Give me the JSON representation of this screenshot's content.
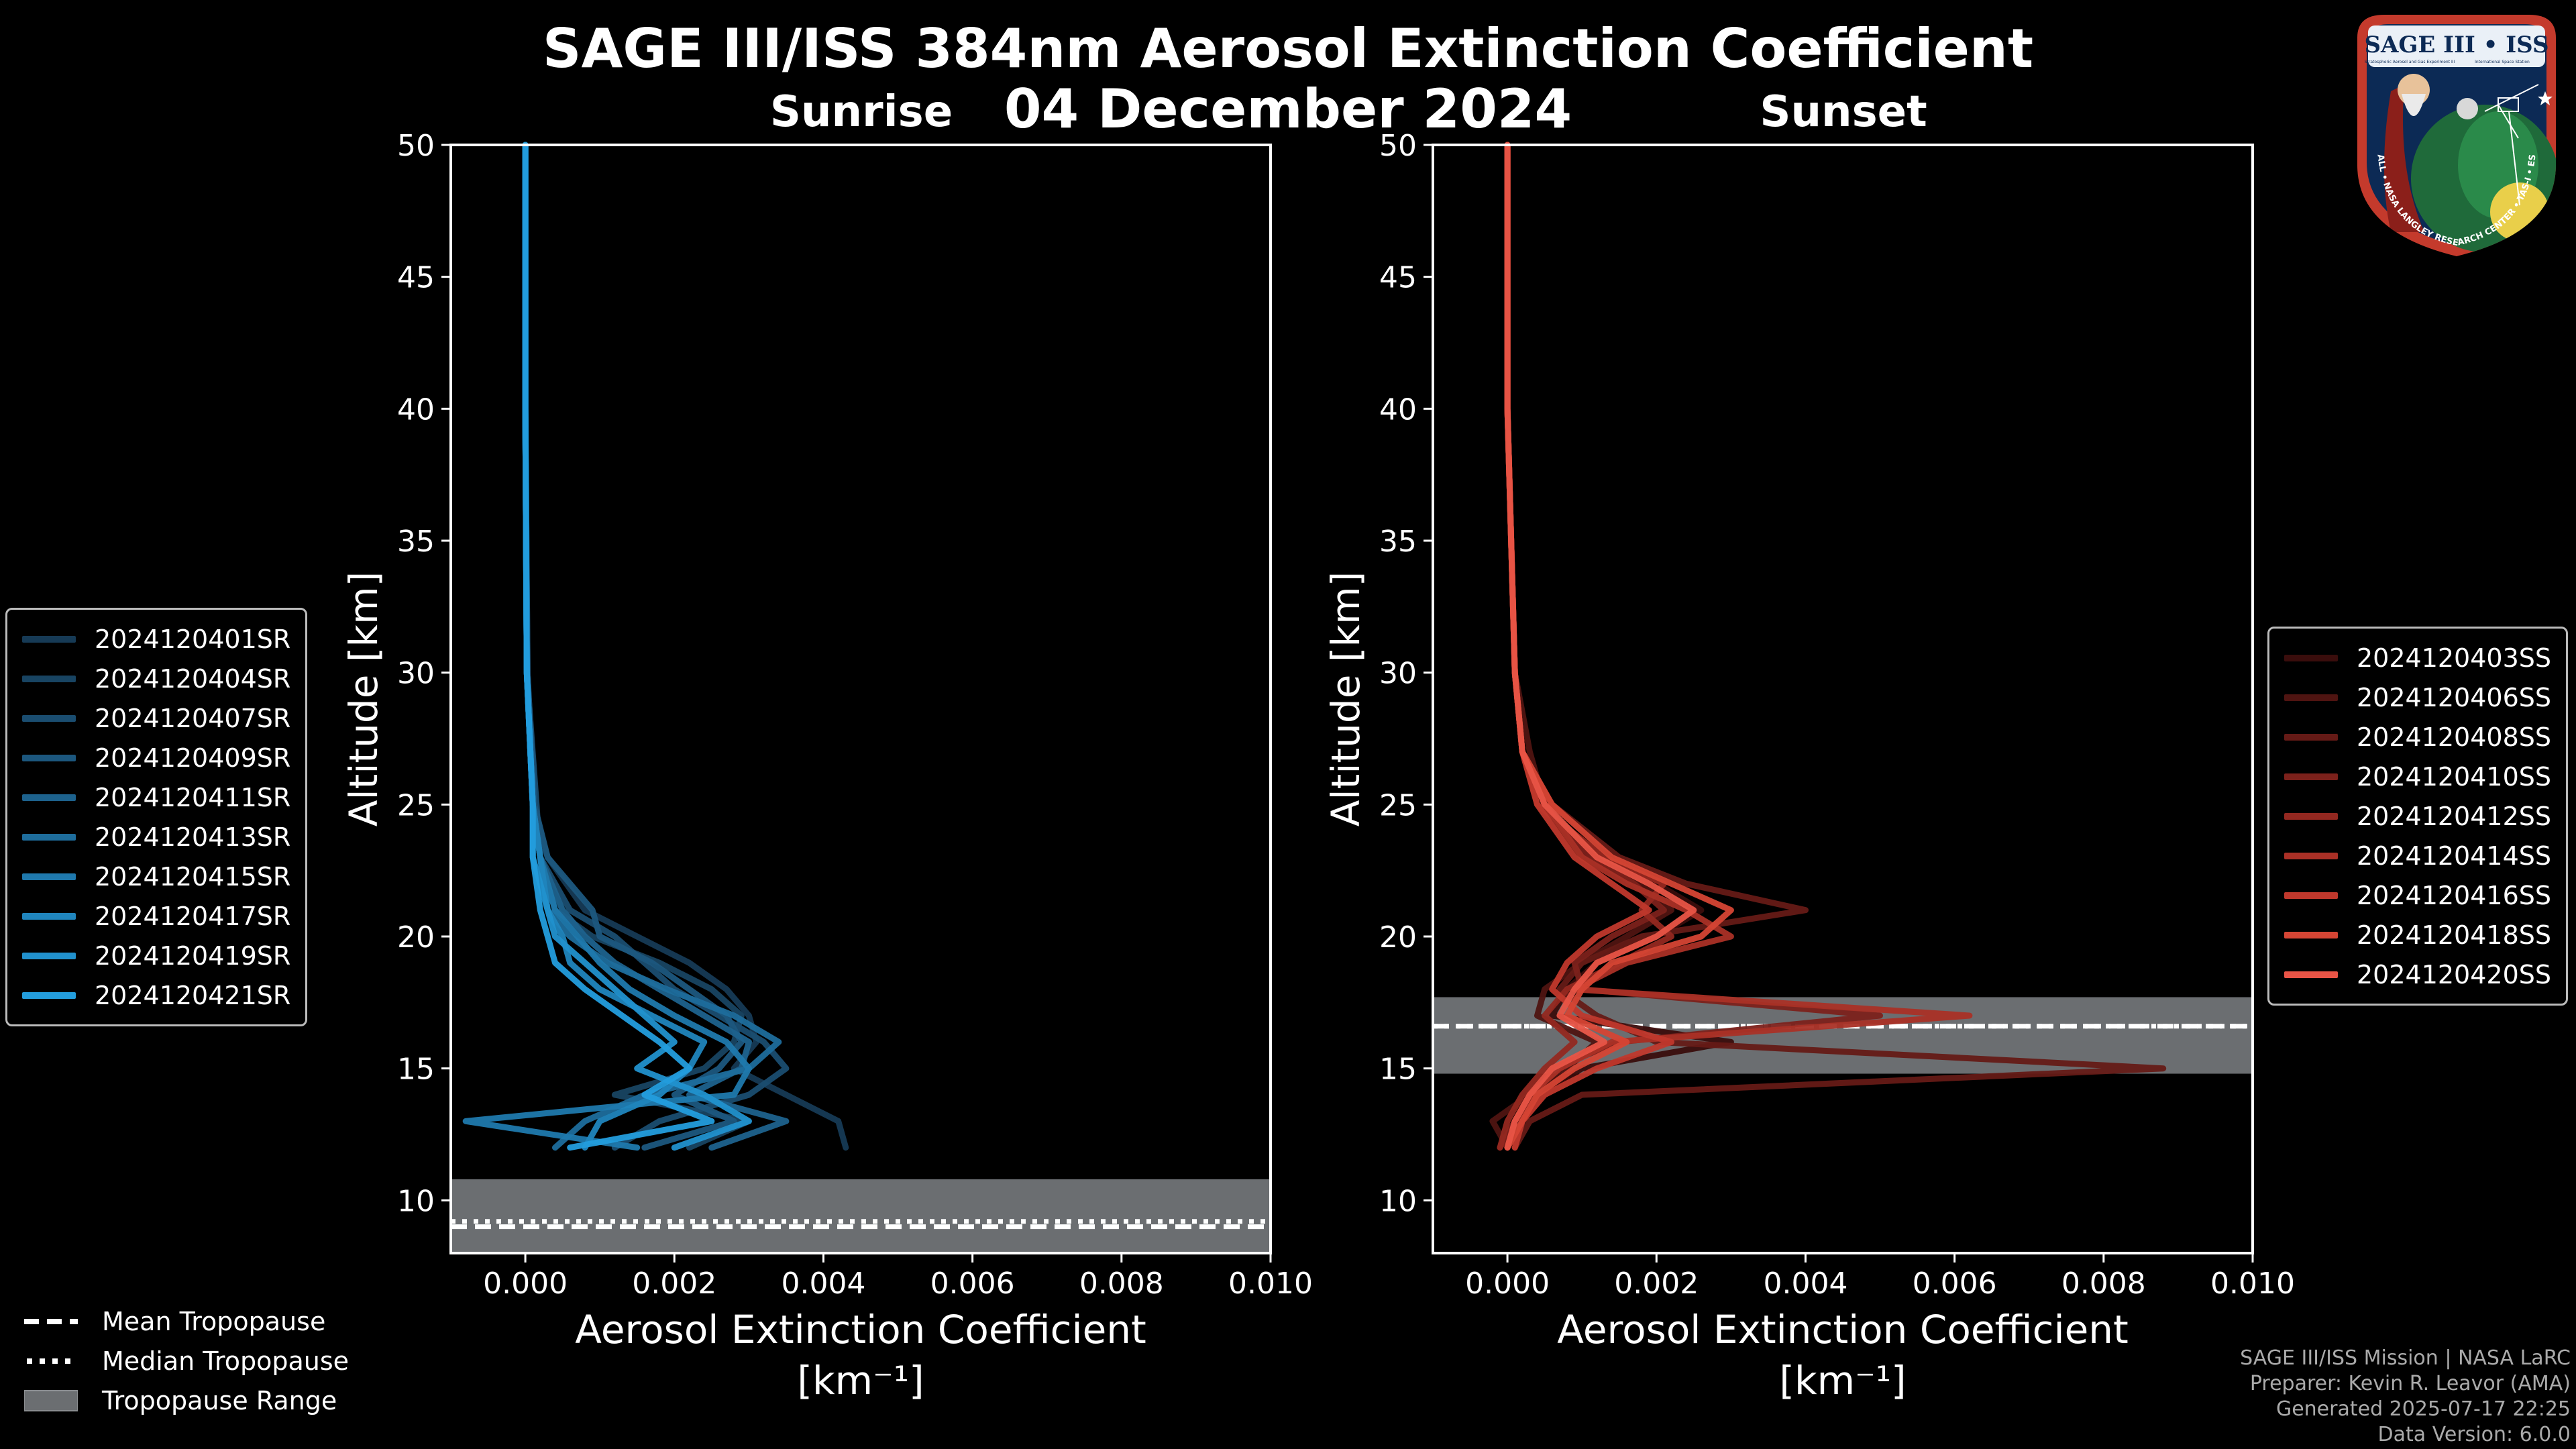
{
  "title": "SAGE III/ISS 384nm Aerosol Extinction Coefficient",
  "date": "04 December 2024",
  "sunrise_label": "Sunrise",
  "sunset_label": "Sunset",
  "xlabel": "Aerosol Extinction Coefficient",
  "xunit": "[km⁻¹]",
  "ylabel": "Altitude [km]",
  "trop_legend": {
    "mean": "Mean Tropopause",
    "median": "Median Tropopause",
    "range": "Tropopause Range"
  },
  "credits": {
    "line1": "SAGE III/ISS Mission | NASA LaRC",
    "line2": "Preparer: Kevin R. Leavor (AMA)",
    "line3": "Generated 2025-07-17 22:25",
    "line4": "Data Version: 6.0.0"
  },
  "logo": {
    "name": "SAGE III • ISS",
    "sub_left": "Stratospheric Aerosol and Gas Experiment III",
    "sub_right": "International Space Station",
    "ring": "BALL • NASA LANGLEY RESEARCH CENTER • TAS-I • ESA"
  },
  "chart_data": [
    {
      "type": "line",
      "panel": "Sunrise",
      "xlim": [
        -0.001,
        0.01
      ],
      "ylim": [
        8,
        50
      ],
      "xticks": [
        0.0,
        0.002,
        0.004,
        0.006,
        0.008,
        0.01
      ],
      "xtick_labels": [
        "0.000",
        "0.002",
        "0.004",
        "0.006",
        "0.008",
        "0.010"
      ],
      "yticks": [
        10,
        15,
        20,
        25,
        30,
        35,
        40,
        45,
        50
      ],
      "tropopause": {
        "mean": 9.0,
        "median": 9.2,
        "min": 8.0,
        "max": 10.8
      },
      "series": [
        {
          "name": "2024120401SR",
          "color": "#163a55",
          "alt": [
            50,
            40,
            30,
            25,
            23,
            21,
            20,
            19,
            18,
            17,
            16,
            15,
            14,
            13,
            12
          ],
          "ext": [
            0.0,
            0.0,
            2e-05,
            0.0001,
            0.0003,
            0.0008,
            0.0015,
            0.0022,
            0.0027,
            0.003,
            0.0031,
            0.0028,
            0.0035,
            0.0042,
            0.0043
          ]
        },
        {
          "name": "2024120404SR",
          "color": "#184462",
          "alt": [
            50,
            40,
            30,
            25,
            23,
            21,
            20,
            19,
            18,
            17,
            16,
            15,
            14,
            13,
            12
          ],
          "ext": [
            0.0,
            0.0,
            3e-05,
            0.0001,
            0.0002,
            0.0004,
            0.0009,
            0.0018,
            0.0025,
            0.0029,
            0.0028,
            0.0024,
            0.0012,
            0.003,
            0.0022
          ]
        },
        {
          "name": "2024120407SR",
          "color": "#1a4d70",
          "alt": [
            50,
            40,
            30,
            25,
            23,
            21,
            20,
            19,
            18,
            17,
            16,
            15,
            14,
            13,
            12
          ],
          "ext": [
            0.0,
            0.0,
            2e-05,
            0.00015,
            0.0002,
            0.0006,
            0.0012,
            0.0016,
            0.002,
            0.0026,
            0.0032,
            0.0035,
            0.003,
            0.0018,
            0.0012
          ]
        },
        {
          "name": "2024120409SR",
          "color": "#1c577e",
          "alt": [
            50,
            40,
            30,
            25,
            23,
            21,
            20,
            19,
            18,
            17,
            16,
            15,
            14,
            13,
            12
          ],
          "ext": [
            0.0,
            0.0,
            3e-05,
            0.00012,
            0.0003,
            0.0009,
            0.001,
            0.0017,
            0.0022,
            0.0027,
            0.0029,
            0.0026,
            0.002,
            0.0028,
            0.0016
          ]
        },
        {
          "name": "2024120411SR",
          "color": "#1d628d",
          "alt": [
            50,
            40,
            30,
            25,
            23,
            21,
            20,
            19,
            18,
            17,
            16,
            15,
            14,
            13,
            12
          ],
          "ext": [
            0.0,
            0.0,
            2e-05,
            0.0001,
            0.0002,
            0.0005,
            0.0008,
            0.0012,
            0.0018,
            0.0024,
            0.003,
            0.0029,
            0.0022,
            0.0035,
            0.0025
          ]
        },
        {
          "name": "2024120413SR",
          "color": "#1e6d9c",
          "alt": [
            50,
            40,
            30,
            25,
            23,
            21,
            20,
            19,
            18,
            17,
            16,
            15,
            14,
            13,
            12
          ],
          "ext": [
            0.0,
            0.0,
            2e-05,
            0.0001,
            0.0002,
            0.0003,
            0.0006,
            0.0011,
            0.0019,
            0.0028,
            0.0034,
            0.003,
            0.0016,
            0.0008,
            0.0004
          ]
        },
        {
          "name": "2024120415SR",
          "color": "#1f79ad",
          "alt": [
            50,
            40,
            30,
            25,
            23,
            21,
            20,
            19,
            18,
            17,
            16,
            15,
            14,
            13,
            12
          ],
          "ext": [
            0.0,
            0.0,
            2e-05,
            0.0001,
            0.0002,
            0.0004,
            0.0007,
            0.001,
            0.0014,
            0.002,
            0.0027,
            0.003,
            0.0028,
            -0.0008,
            0.0015
          ]
        },
        {
          "name": "2024120417SR",
          "color": "#2085bd",
          "alt": [
            50,
            40,
            30,
            25,
            23,
            21,
            20,
            19,
            18,
            17,
            16,
            15,
            14,
            13,
            12
          ],
          "ext": [
            0.0,
            0.0,
            2e-05,
            0.0001,
            0.0002,
            0.0003,
            0.0005,
            0.0006,
            0.001,
            0.0017,
            0.0024,
            0.0022,
            0.0018,
            0.001,
            0.0008
          ]
        },
        {
          "name": "2024120419SR",
          "color": "#2191cd",
          "alt": [
            50,
            40,
            30,
            25,
            23,
            21,
            20,
            19,
            18,
            17,
            16,
            15,
            14,
            13,
            12
          ],
          "ext": [
            0.0,
            0.0,
            2e-05,
            0.0001,
            0.0001,
            0.0003,
            0.0004,
            0.0008,
            0.0012,
            0.0016,
            0.002,
            0.0015,
            0.0024,
            0.003,
            0.002
          ]
        },
        {
          "name": "2024120421SR",
          "color": "#239ddd",
          "alt": [
            50,
            40,
            30,
            25,
            23,
            21,
            20,
            19,
            18,
            17,
            16,
            15,
            14,
            13,
            12
          ],
          "ext": [
            0.0,
            0.0,
            2e-05,
            0.0001,
            0.0001,
            0.0002,
            0.0003,
            0.0004,
            0.0008,
            0.0013,
            0.0018,
            0.0022,
            0.0016,
            0.0025,
            0.0006
          ]
        }
      ]
    },
    {
      "type": "line",
      "panel": "Sunset",
      "xlim": [
        -0.001,
        0.01
      ],
      "ylim": [
        8,
        50
      ],
      "xticks": [
        0.0,
        0.002,
        0.004,
        0.006,
        0.008,
        0.01
      ],
      "xtick_labels": [
        "0.000",
        "0.002",
        "0.004",
        "0.006",
        "0.008",
        "0.010"
      ],
      "yticks": [
        10,
        15,
        20,
        25,
        30,
        35,
        40,
        45,
        50
      ],
      "tropopause": {
        "mean": 16.6,
        "median": 16.6,
        "min": 14.8,
        "max": 17.7
      },
      "series": [
        {
          "name": "2024120403SS",
          "color": "#3a0d0c",
          "alt": [
            50,
            40,
            30,
            27,
            25,
            23,
            22,
            21,
            20,
            19,
            18,
            17,
            16,
            15,
            14,
            13,
            12
          ],
          "ext": [
            0.0,
            0.0,
            0.0001,
            0.0002,
            0.0004,
            0.0012,
            0.002,
            0.0026,
            0.002,
            0.0012,
            0.0008,
            0.0006,
            0.003,
            0.001,
            0.0004,
            0.0002,
            0.0001
          ]
        },
        {
          "name": "2024120406SS",
          "color": "#4f1411",
          "alt": [
            50,
            40,
            30,
            27,
            25,
            23,
            22,
            21,
            20,
            19,
            18,
            17,
            16,
            15,
            14,
            13,
            12
          ],
          "ext": [
            0.0,
            0.0,
            0.0001,
            0.0003,
            0.0005,
            0.001,
            0.0018,
            0.0022,
            0.0016,
            0.001,
            0.0005,
            0.0004,
            0.0012,
            0.0008,
            0.0003,
            -0.0002,
            0.0
          ]
        },
        {
          "name": "2024120408SS",
          "color": "#651a16",
          "alt": [
            50,
            40,
            30,
            27,
            25,
            23,
            22,
            21,
            20,
            19,
            18,
            17,
            16,
            15,
            14,
            13,
            12
          ],
          "ext": [
            0.0,
            0.0,
            0.0001,
            0.0002,
            0.0006,
            0.0015,
            0.0024,
            0.004,
            0.0018,
            0.001,
            0.0007,
            0.0012,
            0.002,
            0.0088,
            0.001,
            0.0003,
            0.0001
          ]
        },
        {
          "name": "2024120410SS",
          "color": "#7c211b",
          "alt": [
            50,
            40,
            30,
            27,
            25,
            23,
            22,
            21,
            20,
            19,
            18,
            17,
            16,
            15,
            14,
            13,
            12
          ],
          "ext": [
            0.0,
            0.0,
            0.0001,
            0.0002,
            0.0005,
            0.0011,
            0.0017,
            0.0021,
            0.0014,
            0.0009,
            0.001,
            0.005,
            0.0015,
            0.0006,
            0.0004,
            0.0001,
            -0.0001
          ]
        },
        {
          "name": "2024120412SS",
          "color": "#932820",
          "alt": [
            50,
            40,
            30,
            27,
            25,
            23,
            22,
            21,
            20,
            19,
            18,
            17,
            16,
            15,
            14,
            13,
            12
          ],
          "ext": [
            0.0,
            0.0,
            0.0001,
            0.0002,
            0.0004,
            0.0013,
            0.0021,
            0.0018,
            0.0022,
            0.0015,
            0.0008,
            0.0005,
            0.0009,
            0.0005,
            0.0002,
            0.0,
            -0.0001
          ]
        },
        {
          "name": "2024120414SS",
          "color": "#aa3026",
          "alt": [
            50,
            40,
            30,
            27,
            25,
            23,
            22,
            21,
            20,
            19,
            18,
            17,
            16,
            15,
            14,
            13,
            12
          ],
          "ext": [
            0.0,
            0.0,
            0.0001,
            0.0002,
            0.0005,
            0.001,
            0.0016,
            0.0024,
            0.003,
            0.0016,
            0.0009,
            0.0062,
            0.0014,
            0.0007,
            0.0003,
            0.0001,
            0.0
          ]
        },
        {
          "name": "2024120416SS",
          "color": "#c0382c",
          "alt": [
            50,
            40,
            30,
            27,
            25,
            23,
            22,
            21,
            20,
            19,
            18,
            17,
            16,
            15,
            14,
            13,
            12
          ],
          "ext": [
            0.0,
            0.0,
            0.0001,
            0.0002,
            0.0004,
            0.0009,
            0.0014,
            0.0019,
            0.0012,
            0.0008,
            0.0006,
            0.001,
            0.0022,
            0.0012,
            0.0005,
            0.0002,
            0.0001
          ]
        },
        {
          "name": "2024120418SS",
          "color": "#d54534",
          "alt": [
            50,
            40,
            30,
            27,
            25,
            23,
            22,
            21,
            20,
            19,
            18,
            17,
            16,
            15,
            14,
            13,
            12
          ],
          "ext": [
            0.0,
            0.0,
            0.0001,
            0.0002,
            0.0006,
            0.0014,
            0.0022,
            0.003,
            0.0026,
            0.0014,
            0.001,
            0.0008,
            0.0016,
            0.0009,
            0.0004,
            0.0002,
            0.0
          ]
        },
        {
          "name": "2024120420SS",
          "color": "#e85446",
          "alt": [
            50,
            40,
            30,
            27,
            25,
            23,
            22,
            21,
            20,
            19,
            18,
            17,
            16,
            15,
            14,
            13,
            12
          ],
          "ext": [
            0.0,
            0.0,
            0.0001,
            0.0002,
            0.0005,
            0.0012,
            0.0019,
            0.0025,
            0.002,
            0.0012,
            0.0009,
            0.0007,
            0.0013,
            0.0006,
            0.0003,
            0.0001,
            0.0
          ]
        }
      ]
    }
  ]
}
